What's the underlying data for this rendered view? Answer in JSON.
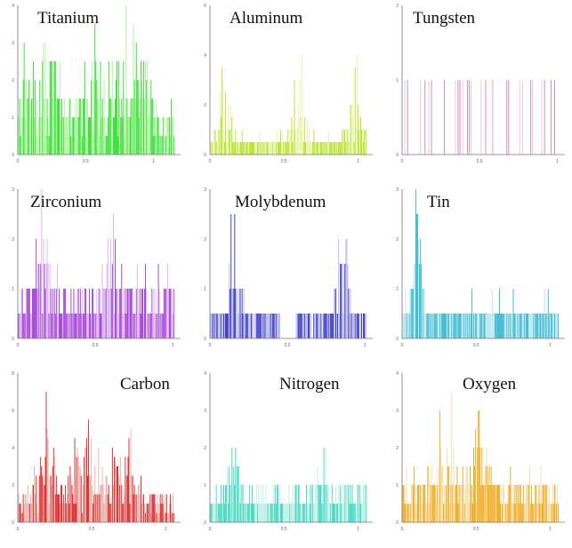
{
  "chart_data": [
    {
      "type": "bar",
      "title": "Titanium",
      "color": "#2ee02a",
      "light": "#aef3a0",
      "xlim": [
        0,
        1.2
      ],
      "ylim": [
        0,
        4
      ],
      "xticks": [
        "0",
        "0.5",
        "1"
      ],
      "yticks": [
        "0",
        "1",
        "2",
        "3",
        "4"
      ],
      "base": 1,
      "peakSpots": [
        0.1,
        0.25,
        0.55,
        0.75,
        0.9
      ],
      "peakHeight": 2.5,
      "spread": 0.08
    },
    {
      "type": "bar",
      "title": "Aluminum",
      "color": "#b8e12a",
      "light": "#e6f5a8",
      "xlim": [
        0,
        1.1
      ],
      "ylim": [
        0,
        6
      ],
      "xticks": [
        "0",
        "0.5",
        "1"
      ],
      "yticks": [
        "0",
        "2",
        "4",
        "6"
      ],
      "base": 0.6,
      "peakSpots": [
        0.1,
        0.6,
        0.98
      ],
      "peakHeight": 3.5,
      "spread": 0.05
    },
    {
      "type": "bar",
      "title": "Tungsten",
      "color": "#c988b7",
      "light": "#e7c6df",
      "xlim": [
        0,
        1.05
      ],
      "ylim": [
        0,
        2
      ],
      "xticks": [
        "0",
        "0.5",
        "1"
      ],
      "yticks": [
        "0",
        "1",
        "2"
      ],
      "base": 0,
      "peakSpots": [],
      "peakHeight": 0,
      "spread": 0,
      "sparse": true,
      "sparseHeight": 1
    },
    {
      "type": "bar",
      "title": "Zirconium",
      "color": "#a23ad6",
      "light": "#d7b3ec",
      "xlim": [
        0,
        1.05
      ],
      "ylim": [
        0,
        3
      ],
      "xticks": [
        "0",
        "0.5",
        "1"
      ],
      "yticks": [
        "0",
        "1",
        "2",
        "3"
      ],
      "base": 1,
      "peakSpots": [
        0.15,
        0.6
      ],
      "peakHeight": 1.8,
      "spread": 0.04
    },
    {
      "type": "bar",
      "title": "Molybdenum",
      "color": "#3030c8",
      "light": "#b8b8e6",
      "xlim": [
        0,
        1.05
      ],
      "ylim": [
        0,
        3
      ],
      "xticks": [
        "0",
        "0.5",
        "1"
      ],
      "yticks": [
        "0",
        "1",
        "2",
        "3"
      ],
      "base": 0.5,
      "peakSpots": [
        0.15,
        0.85
      ],
      "peakHeight": 2.0,
      "spread": 0.05,
      "gap": [
        0.45,
        0.55
      ]
    },
    {
      "type": "bar",
      "title": "Tin",
      "color": "#35b8d0",
      "light": "#b9e6ef",
      "xlim": [
        0,
        1.1
      ],
      "ylim": [
        0,
        3
      ],
      "xticks": [
        "0",
        "0.5",
        "1"
      ],
      "yticks": [
        "0",
        "1",
        "2",
        "3"
      ],
      "base": 0.6,
      "peakSpots": [
        0.1
      ],
      "peakHeight": 2.4,
      "spread": 0.03
    },
    {
      "type": "bar",
      "title": "Carbon",
      "color": "#e02020",
      "light": "#e4b1ac",
      "xlim": [
        0,
        1.1
      ],
      "ylim": [
        0,
        8
      ],
      "xticks": [
        "0",
        "0.5",
        "1"
      ],
      "yticks": [
        "0",
        "2",
        "4",
        "6",
        "8"
      ],
      "base": 1.2,
      "peakSpots": [
        0.2,
        0.45,
        0.7
      ],
      "peakHeight": 4.5,
      "spread": 0.1
    },
    {
      "type": "bar",
      "title": "Nitrogen",
      "color": "#3dd8c0",
      "light": "#bdeee6",
      "xlim": [
        0,
        1.1
      ],
      "ylim": [
        0,
        4
      ],
      "xticks": [
        "0",
        "0.5",
        "1"
      ],
      "yticks": [
        "0",
        "1",
        "2",
        "3",
        "4"
      ],
      "base": 0.8,
      "peakSpots": [
        0.15,
        0.75
      ],
      "peakHeight": 2.0,
      "spread": 0.04
    },
    {
      "type": "bar",
      "title": "Oxygen",
      "color": "#f0a818",
      "light": "#f6dca0",
      "xlim": [
        0,
        1.1
      ],
      "ylim": [
        0,
        4
      ],
      "xticks": [
        "0",
        "0.5",
        "1"
      ],
      "yticks": [
        "0",
        "1",
        "2",
        "3",
        "4"
      ],
      "base": 1,
      "peakSpots": [
        0.3,
        0.5
      ],
      "peakHeight": 2.4,
      "spread": 0.08
    }
  ]
}
